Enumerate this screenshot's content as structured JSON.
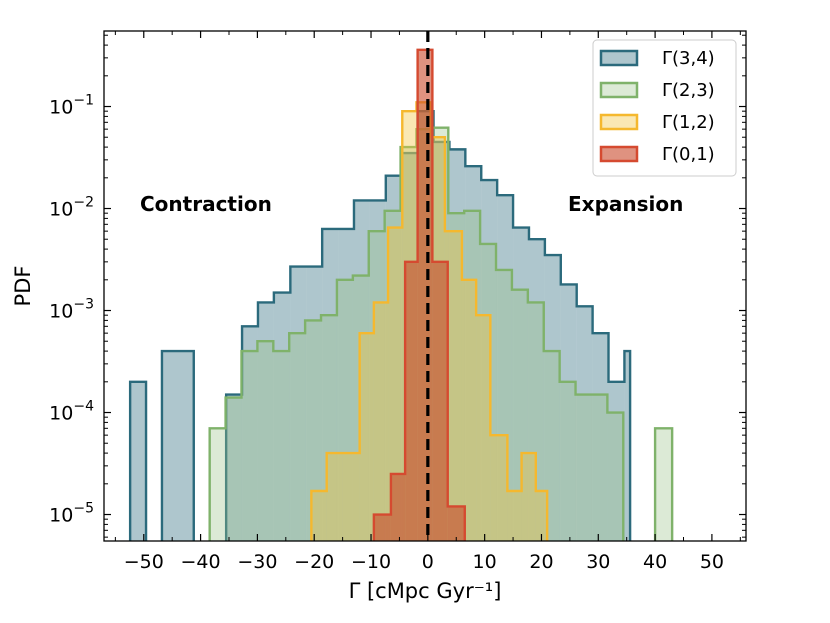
{
  "chart_data": {
    "type": "histogram",
    "title": "",
    "xlabel": "Γ   [cMpc Gyr⁻¹]",
    "ylabel": "PDF",
    "xlim": [
      -57,
      56
    ],
    "ylim": [
      5.5e-06,
      0.55
    ],
    "yscale": "log",
    "x_ticks": [
      -50,
      -40,
      -30,
      -20,
      -10,
      0,
      10,
      20,
      30,
      40,
      50
    ],
    "x_tick_labels": [
      "−50",
      "−40",
      "−30",
      "−20",
      "−10",
      "0",
      "10",
      "20",
      "30",
      "40",
      "50"
    ],
    "y_ticks": [
      1e-05,
      0.0001,
      0.001,
      0.01,
      0.1
    ],
    "y_tick_labels": [
      {
        "base": "10",
        "exp": "−5"
      },
      {
        "base": "10",
        "exp": "−4"
      },
      {
        "base": "10",
        "exp": "−3"
      },
      {
        "base": "10",
        "exp": "−2"
      },
      {
        "base": "10",
        "exp": "−1"
      }
    ],
    "vline": {
      "x": 0,
      "color": "#000000",
      "style": "dashed"
    },
    "annotations": [
      {
        "text": "Contraction",
        "x": -50,
        "y": 0.011
      },
      {
        "text": "Expansion",
        "x": 25,
        "y": 0.011
      }
    ],
    "legend_position": "top-right",
    "series": [
      {
        "name": "Γ(3,4)",
        "edge": "#2b6a7c",
        "fill": "#2b6a7c",
        "fill_opacity": 0.38,
        "bins": [
          [
            -52.4,
            -49.6,
            0.0002
          ],
          [
            -46.8,
            -41.2,
            0.0004
          ],
          [
            -35.5,
            -32.7,
            0.00015
          ],
          [
            -32.7,
            -29.9,
            0.0007
          ],
          [
            -29.9,
            -27.1,
            0.0012
          ],
          [
            -27.1,
            -24.2,
            0.0015
          ],
          [
            -24.2,
            -21.4,
            0.0027
          ],
          [
            -21.4,
            -18.6,
            0.0027
          ],
          [
            -18.6,
            -15.8,
            0.0063
          ],
          [
            -15.8,
            -13.0,
            0.0063
          ],
          [
            -13.0,
            -10.2,
            0.012
          ],
          [
            -10.2,
            -7.4,
            0.012
          ],
          [
            -7.4,
            -4.6,
            0.021
          ],
          [
            -4.6,
            -1.8,
            0.035
          ],
          [
            -1.8,
            1.0,
            0.09
          ],
          [
            1.0,
            3.8,
            0.045
          ],
          [
            3.8,
            6.6,
            0.038
          ],
          [
            6.6,
            9.4,
            0.026
          ],
          [
            9.4,
            12.2,
            0.019
          ],
          [
            12.2,
            15.0,
            0.0135
          ],
          [
            15.0,
            17.8,
            0.0065
          ],
          [
            17.8,
            20.6,
            0.005
          ],
          [
            20.6,
            23.4,
            0.0035
          ],
          [
            23.4,
            26.2,
            0.0018
          ],
          [
            26.2,
            29.0,
            0.0011
          ],
          [
            29.0,
            31.8,
            0.0006
          ],
          [
            31.8,
            34.6,
            0.0002
          ],
          [
            34.6,
            35.6,
            0.0004
          ]
        ]
      },
      {
        "name": "Γ(2,3)",
        "edge": "#7fb26a",
        "fill": "#9bc48a",
        "fill_opacity": 0.35,
        "bins": [
          [
            -38.4,
            -35.6,
            7e-05
          ],
          [
            -35.6,
            -32.8,
            0.00014
          ],
          [
            -32.8,
            -30.0,
            0.0004
          ],
          [
            -30.0,
            -27.2,
            0.0005
          ],
          [
            -27.2,
            -24.4,
            0.0004
          ],
          [
            -24.4,
            -21.6,
            0.0006
          ],
          [
            -21.6,
            -18.8,
            0.0008
          ],
          [
            -18.8,
            -16.0,
            0.0009
          ],
          [
            -16.0,
            -13.2,
            0.002
          ],
          [
            -13.2,
            -10.4,
            0.0022
          ],
          [
            -10.4,
            -7.6,
            0.006
          ],
          [
            -7.6,
            -4.8,
            0.0095
          ],
          [
            -4.8,
            -2.0,
            0.04
          ],
          [
            -2.0,
            0.8,
            0.06
          ],
          [
            0.8,
            3.6,
            0.062
          ],
          [
            3.6,
            6.4,
            0.009
          ],
          [
            6.4,
            9.2,
            0.0095
          ],
          [
            9.2,
            12.0,
            0.0045
          ],
          [
            12.0,
            14.8,
            0.0025
          ],
          [
            14.8,
            17.6,
            0.0016
          ],
          [
            17.6,
            20.4,
            0.0012
          ],
          [
            20.4,
            23.2,
            0.0004
          ],
          [
            23.2,
            26.0,
            0.0002
          ],
          [
            26.0,
            28.8,
            0.00015
          ],
          [
            28.8,
            31.6,
            0.00015
          ],
          [
            31.6,
            34.4,
            0.0001
          ],
          [
            40.0,
            43.0,
            7e-05
          ]
        ]
      },
      {
        "name": "Γ(1,2)",
        "edge": "#f5b82e",
        "fill": "#f2c540",
        "fill_opacity": 0.4,
        "bins": [
          [
            -20.5,
            -17.8,
            1.7e-05
          ],
          [
            -17.8,
            -15.0,
            4e-05
          ],
          [
            -15.0,
            -12.0,
            4e-05
          ],
          [
            -12.0,
            -9.5,
            0.0006
          ],
          [
            -9.5,
            -7.0,
            0.0012
          ],
          [
            -7.0,
            -4.5,
            0.0065
          ],
          [
            -4.5,
            -2.0,
            0.09
          ],
          [
            -2.0,
            0.5,
            0.11
          ],
          [
            0.5,
            3.0,
            0.05
          ],
          [
            3.0,
            6.0,
            0.006
          ],
          [
            6.0,
            8.5,
            0.002
          ],
          [
            8.5,
            11.0,
            0.0009
          ],
          [
            11.0,
            14.0,
            6e-05
          ],
          [
            14.0,
            16.5,
            1.7e-05
          ],
          [
            16.5,
            19.0,
            4e-05
          ],
          [
            19.0,
            21.0,
            1.7e-05
          ]
        ]
      },
      {
        "name": "Γ(0,1)",
        "edge": "#d54a30",
        "fill": "#c94a2c",
        "fill_opacity": 0.6,
        "bins": [
          [
            -9.5,
            -6.5,
            1e-05
          ],
          [
            -6.5,
            -4.0,
            2.5e-05
          ],
          [
            -4.0,
            -1.8,
            0.003
          ],
          [
            -1.8,
            0.8,
            0.36
          ],
          [
            0.8,
            3.5,
            0.003
          ],
          [
            3.5,
            6.5,
            1.2e-05
          ]
        ]
      }
    ]
  }
}
